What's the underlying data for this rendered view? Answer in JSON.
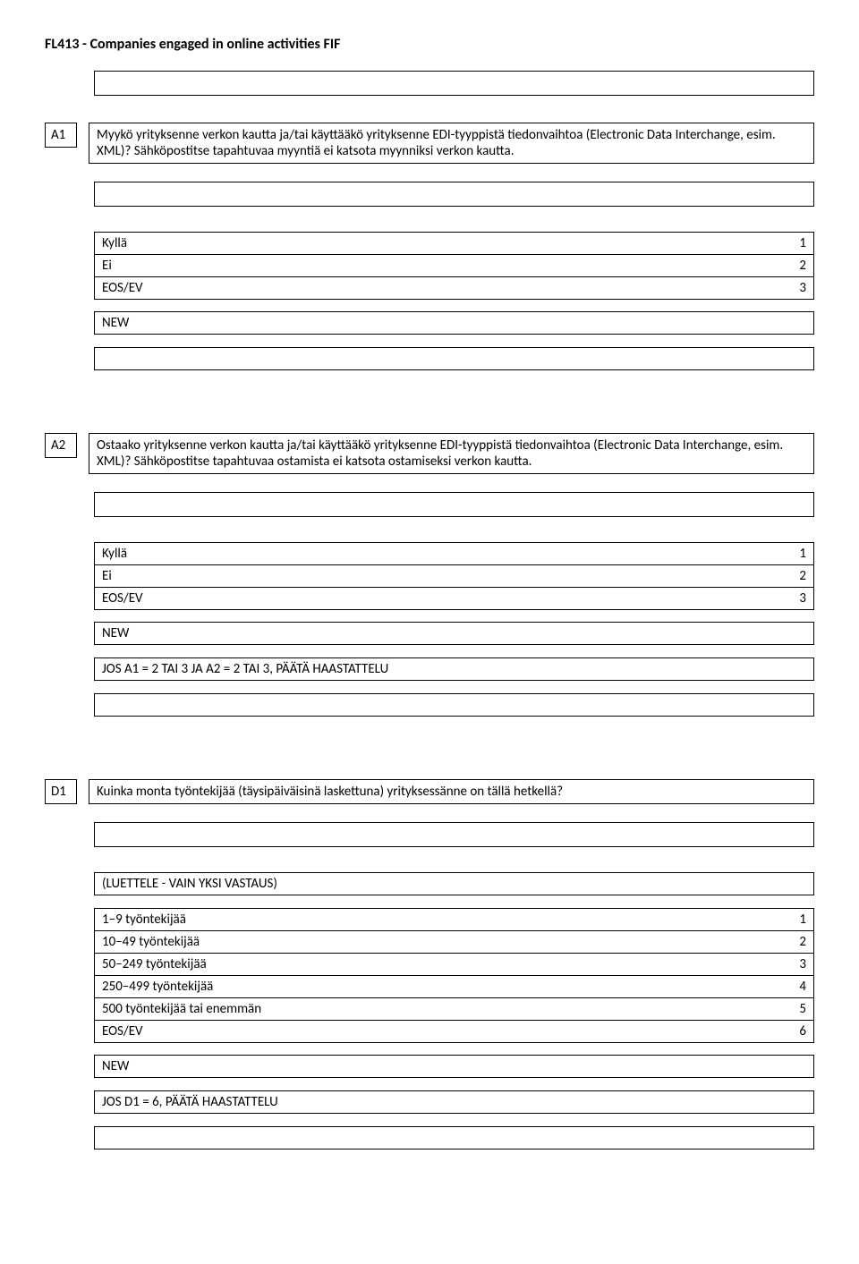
{
  "title": "FL413 - Companies engaged in online activities FIF",
  "questions": {
    "a1": {
      "id": "A1",
      "text": "Myykö yrityksenne verkon kautta ja/tai käyttääkö yrityksenne EDI-tyyppistä tiedonvaihtoa (Electronic Data Interchange, esim. XML)? Sähköpostitse tapahtuvaa myyntiä ei katsota myynniksi verkon kautta.",
      "options": [
        {
          "label": "Kyllä",
          "value": "1"
        },
        {
          "label": "Ei",
          "value": "2"
        },
        {
          "label": "EOS/EV",
          "value": "3"
        }
      ],
      "tag": "NEW"
    },
    "a2": {
      "id": "A2",
      "text": "Ostaako yrityksenne verkon kautta ja/tai käyttääkö yrityksenne EDI-tyyppistä tiedonvaihtoa (Electronic Data Interchange, esim. XML)? Sähköpostitse tapahtuvaa ostamista ei katsota ostamiseksi verkon kautta.",
      "options": [
        {
          "label": "Kyllä",
          "value": "1"
        },
        {
          "label": "Ei",
          "value": "2"
        },
        {
          "label": "EOS/EV",
          "value": "3"
        }
      ],
      "tag": "NEW",
      "routing": "JOS A1 = 2 TAI 3 JA A2 = 2 TAI 3, PÄÄTÄ HAASTATTELU"
    },
    "d1": {
      "id": "D1",
      "text": "Kuinka monta työntekijää (täysipäiväisinä laskettuna) yrityksessänne on tällä hetkellä?",
      "instruction": "(LUETTELE - VAIN YKSI VASTAUS)",
      "options": [
        {
          "label": "1–9 työntekijää",
          "value": "1"
        },
        {
          "label": "10–49 työntekijää",
          "value": "2"
        },
        {
          "label": "50–249 työntekijää",
          "value": "3"
        },
        {
          "label": "250–499 työntekijää",
          "value": "4"
        },
        {
          "label": "500 työntekijää tai enemmän",
          "value": "5"
        },
        {
          "label": "EOS/EV",
          "value": "6"
        }
      ],
      "tag": "NEW",
      "routing": "JOS D1 = 6, PÄÄTÄ HAASTATTELU"
    }
  }
}
